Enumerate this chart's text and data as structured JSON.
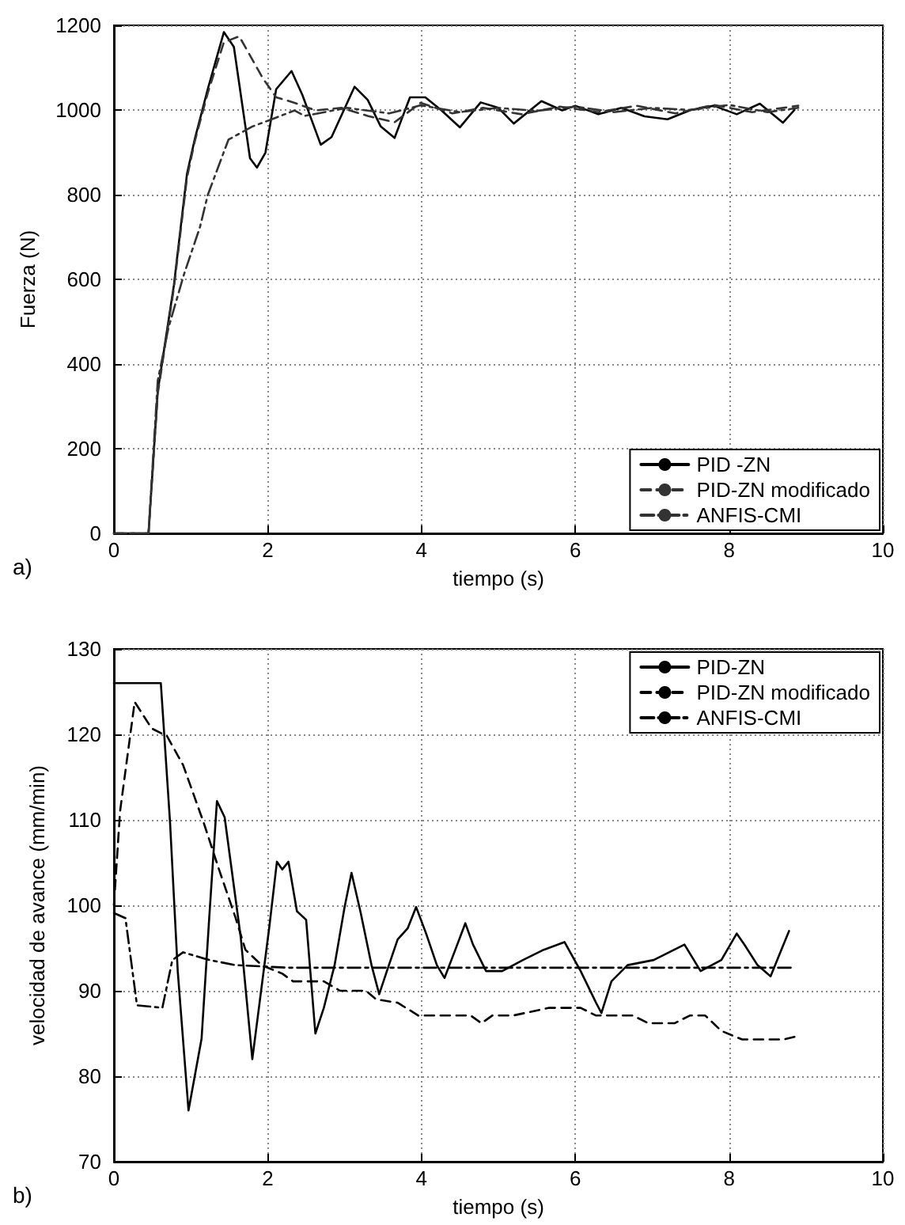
{
  "chart_data": [
    {
      "type": "line",
      "xlabel": "tiempo (s)",
      "ylabel": "Fuerza (N)",
      "annotations": [
        "a)"
      ],
      "xlim": [
        0,
        10
      ],
      "ylim": [
        0,
        1200
      ],
      "xticks": [
        0,
        2,
        4,
        6,
        8,
        10
      ],
      "yticks": [
        0,
        200,
        400,
        600,
        800,
        1000,
        1200
      ],
      "grid": true,
      "legend": "bottom right",
      "marker": "none",
      "series": [
        {
          "name": "PID -ZN",
          "color": "#000000",
          "line_style": "solid",
          "x": [
            0,
            0.45,
            0.57,
            0.78,
            0.95,
            1.05,
            1.22,
            1.43,
            1.56,
            1.77,
            1.86,
            1.97,
            2.11,
            2.31,
            2.45,
            2.69,
            2.83,
            3.13,
            3.3,
            3.47,
            3.65,
            3.85,
            4.05,
            4.26,
            4.5,
            4.77,
            5.0,
            5.2,
            5.56,
            5.83,
            6.0,
            6.3,
            6.6,
            6.9,
            7.2,
            7.5,
            7.8,
            8.1,
            8.4,
            8.7,
            8.85
          ],
          "values": [
            0,
            0,
            336,
            586,
            849,
            930,
            1049,
            1184,
            1149,
            886,
            864,
            899,
            1049,
            1092,
            1036,
            918,
            936,
            1055,
            1024,
            961,
            934,
            1030,
            1030,
            999,
            959,
            1018,
            1005,
            968,
            1021,
            999,
            1010,
            990,
            1005,
            985,
            978,
            1000,
            1010,
            990,
            1015,
            970,
            1000
          ]
        },
        {
          "name": "PID-ZN modificado",
          "color": "#333333",
          "line_style": "dashed",
          "x": [
            0,
            0.45,
            0.57,
            0.78,
            0.95,
            1.05,
            1.22,
            1.43,
            1.63,
            1.94,
            2.11,
            2.35,
            2.62,
            2.96,
            3.3,
            3.65,
            3.99,
            4.4,
            4.8,
            5.3,
            5.8,
            6.3,
            6.8,
            7.3,
            7.8,
            8.3,
            8.9
          ],
          "values": [
            0,
            0,
            330,
            580,
            840,
            925,
            1040,
            1160,
            1174,
            1074,
            1030,
            1017,
            999,
            1005,
            986,
            971,
            1017,
            992,
            1005,
            990,
            1008,
            995,
            1010,
            992,
            1012,
            995,
            1010
          ]
        },
        {
          "name": "ANFIS-CMI",
          "color": "#333333",
          "line_style": "dashdot",
          "x": [
            0,
            0.45,
            0.57,
            0.71,
            0.91,
            1.12,
            1.22,
            1.49,
            1.8,
            2.08,
            2.35,
            2.48,
            3.03,
            3.58,
            3.99,
            4.5,
            5.0,
            5.5,
            6.0,
            6.5,
            7.0,
            7.5,
            8.0,
            8.5,
            8.9
          ],
          "values": [
            0,
            0,
            361,
            486,
            611,
            724,
            799,
            930,
            961,
            980,
            999,
            986,
            1005,
            992,
            1011,
            995,
            1005,
            998,
            1008,
            995,
            1005,
            1000,
            1012,
            995,
            1005
          ]
        }
      ]
    },
    {
      "type": "line",
      "xlabel": "tiempo (s)",
      "ylabel": "velocidad de avance (mm/min)",
      "annotations": [
        "b)"
      ],
      "xlim": [
        0,
        10
      ],
      "ylim": [
        70,
        130
      ],
      "xticks": [
        0,
        2,
        4,
        6,
        8,
        10
      ],
      "yticks": [
        70,
        80,
        90,
        100,
        110,
        120,
        130
      ],
      "grid": true,
      "legend": "top right",
      "marker": "none",
      "series": [
        {
          "name": "PID-ZN",
          "color": "#000000",
          "line_style": "solid",
          "x": [
            0,
            0.61,
            0.73,
            0.83,
            0.97,
            1.14,
            1.24,
            1.34,
            1.44,
            1.65,
            1.8,
            1.88,
            1.95,
            2.02,
            2.12,
            2.19,
            2.27,
            2.38,
            2.5,
            2.62,
            2.73,
            2.87,
            3.0,
            3.09,
            3.21,
            3.35,
            3.45,
            3.55,
            3.69,
            3.82,
            3.93,
            4.06,
            4.2,
            4.3,
            4.44,
            4.57,
            4.67,
            4.84,
            5.05,
            5.32,
            5.59,
            5.86,
            6.07,
            6.27,
            6.34,
            6.47,
            6.68,
            7.02,
            7.42,
            7.63,
            7.9,
            8.1,
            8.2,
            8.37,
            8.54,
            8.68,
            8.78
          ],
          "values": [
            126,
            126,
            109.7,
            92.3,
            76,
            84.4,
            98.6,
            112.2,
            110.3,
            96.2,
            82,
            87.6,
            92.5,
            97.4,
            105.1,
            104.2,
            105.1,
            99.3,
            98.3,
            85,
            88,
            93,
            99.8,
            103.8,
            99.1,
            93,
            89.6,
            92.3,
            96,
            97.3,
            99.8,
            96.7,
            93,
            91.5,
            94.8,
            97.9,
            95.4,
            92.3,
            92.3,
            93.6,
            94.8,
            95.7,
            92.3,
            88.6,
            87.4,
            91.1,
            93,
            93.6,
            95.4,
            92.3,
            93.6,
            96.7,
            95.4,
            93,
            91.7,
            94.8,
            97
          ]
        },
        {
          "name": "PID-ZN modificado",
          "color": "#000000",
          "line_style": "dashed",
          "x": [
            0,
            0.08,
            0.27,
            0.49,
            0.69,
            0.9,
            1.17,
            1.37,
            1.58,
            1.71,
            1.92,
            2.19,
            2.33,
            2.73,
            2.94,
            3.28,
            3.41,
            3.69,
            3.96,
            4.64,
            4.78,
            4.92,
            5.19,
            5.66,
            6.07,
            6.27,
            6.75,
            6.95,
            7.29,
            7.49,
            7.69,
            7.9,
            8.17,
            8.71,
            8.85
          ],
          "values": [
            100,
            111,
            123.8,
            120.7,
            119.8,
            116.4,
            109.6,
            104.1,
            98.6,
            94.8,
            93,
            92,
            91.1,
            91.1,
            90,
            90,
            89,
            88.6,
            87.1,
            87.1,
            86.2,
            87.1,
            87.1,
            88,
            88,
            87.1,
            87.1,
            86.2,
            86.2,
            87.1,
            87.1,
            85.3,
            84.3,
            84.3,
            84.6
          ]
        },
        {
          "name": "ANFIS-CMI",
          "color": "#000000",
          "line_style": "dashdot",
          "x": [
            0,
            0.15,
            0.3,
            0.63,
            0.76,
            0.9,
            1.24,
            1.58,
            2.26,
            8.85
          ],
          "values": [
            99.1,
            98.5,
            88.3,
            88,
            93.6,
            94.5,
            93.6,
            93,
            92.7,
            92.7
          ]
        }
      ]
    }
  ]
}
